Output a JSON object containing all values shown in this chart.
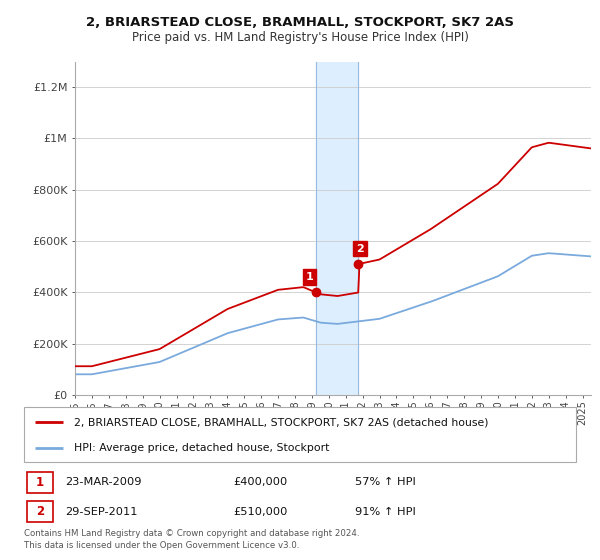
{
  "title_line1": "2, BRIARSTEAD CLOSE, BRAMHALL, STOCKPORT, SK7 2AS",
  "title_line2": "Price paid vs. HM Land Registry's House Price Index (HPI)",
  "legend_line1": "2, BRIARSTEAD CLOSE, BRAMHALL, STOCKPORT, SK7 2AS (detached house)",
  "legend_line2": "HPI: Average price, detached house, Stockport",
  "transaction1_date": "23-MAR-2009",
  "transaction1_price": "£400,000",
  "transaction1_hpi": "57% ↑ HPI",
  "transaction2_date": "29-SEP-2011",
  "transaction2_price": "£510,000",
  "transaction2_hpi": "91% ↑ HPI",
  "footer": "Contains HM Land Registry data © Crown copyright and database right 2024.\nThis data is licensed under the Open Government Licence v3.0.",
  "hpi_color": "#7aaadd",
  "price_color": "#cc0000",
  "highlight_color": "#ddeeff",
  "highlight_border": "#99bbdd",
  "ylim": [
    0,
    1300000
  ],
  "yticks": [
    0,
    200000,
    400000,
    600000,
    800000,
    1000000,
    1200000
  ],
  "ytick_labels": [
    "£0",
    "£200K",
    "£400K",
    "£600K",
    "£800K",
    "£1M",
    "£1.2M"
  ],
  "transaction1_year": 2009.22,
  "transaction2_year": 2011.75,
  "trans1_price_val": 400000,
  "trans2_price_val": 510000
}
